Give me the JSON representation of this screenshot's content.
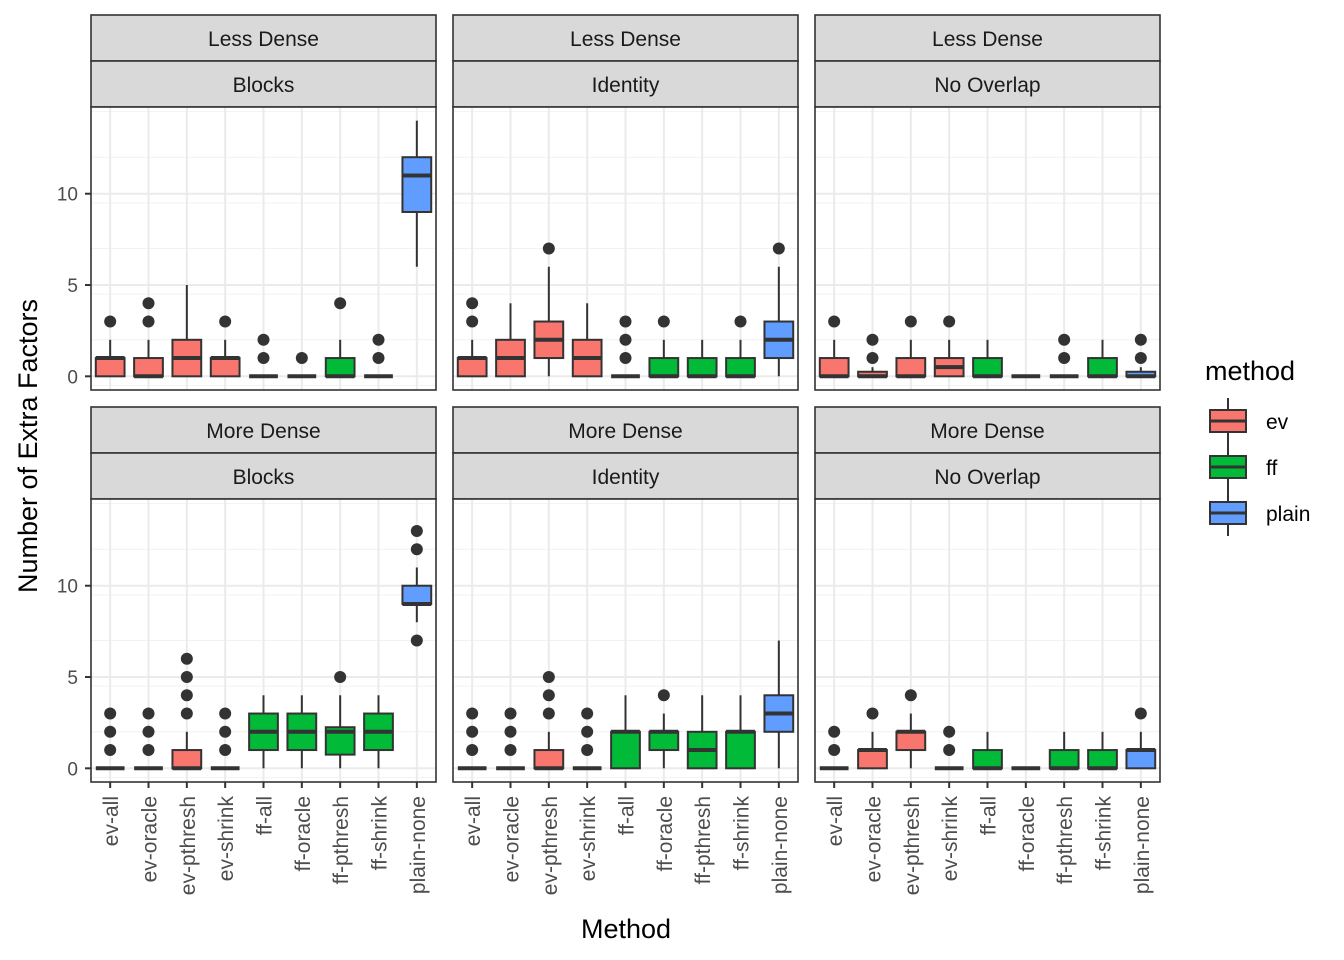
{
  "chart_data": {
    "type": "boxplot",
    "xlabel": "Method",
    "ylabel": "Number of Extra Factors",
    "yticks": [
      0,
      5,
      10
    ],
    "ylim": [
      -0.75,
      14.75
    ],
    "grid": true,
    "categories": [
      "ev-all",
      "ev-oracle",
      "ev-pthresh",
      "ev-shrink",
      "ff-all",
      "ff-oracle",
      "ff-pthresh",
      "ff-shrink",
      "plain-none"
    ],
    "category_group": [
      "ev",
      "ev",
      "ev",
      "ev",
      "ff",
      "ff",
      "ff",
      "ff",
      "plain"
    ],
    "legend": {
      "title": "method",
      "position": "right",
      "entries": [
        {
          "name": "ev",
          "color": "#F8766D"
        },
        {
          "name": "ff",
          "color": "#00BA38"
        },
        {
          "name": "plain",
          "color": "#619CFF"
        }
      ]
    },
    "panels": [
      {
        "strip_top": "Less Dense",
        "strip_bottom": "Blocks",
        "boxes": [
          {
            "q1": 0,
            "median": 1,
            "q3": 1,
            "wlo": 0,
            "whi": 2,
            "outliers": [
              3
            ]
          },
          {
            "q1": 0,
            "median": 0,
            "q3": 1,
            "wlo": 0,
            "whi": 2,
            "outliers": [
              3,
              4
            ]
          },
          {
            "q1": 0,
            "median": 1,
            "q3": 2,
            "wlo": 0,
            "whi": 5,
            "outliers": []
          },
          {
            "q1": 0,
            "median": 1,
            "q3": 1,
            "wlo": 0,
            "whi": 2,
            "outliers": [
              3
            ]
          },
          {
            "q1": 0,
            "median": 0,
            "q3": 0,
            "wlo": 0,
            "whi": 0,
            "outliers": [
              1,
              2
            ]
          },
          {
            "q1": 0,
            "median": 0,
            "q3": 0,
            "wlo": 0,
            "whi": 0,
            "outliers": [
              1
            ]
          },
          {
            "q1": 0,
            "median": 0,
            "q3": 1,
            "wlo": 0,
            "whi": 2,
            "outliers": [
              4
            ]
          },
          {
            "q1": 0,
            "median": 0,
            "q3": 0,
            "wlo": 0,
            "whi": 0,
            "outliers": [
              1,
              2
            ]
          },
          {
            "q1": 9,
            "median": 11,
            "q3": 12,
            "wlo": 6,
            "whi": 14,
            "outliers": []
          }
        ]
      },
      {
        "strip_top": "Less Dense",
        "strip_bottom": "Identity",
        "boxes": [
          {
            "q1": 0,
            "median": 1,
            "q3": 1,
            "wlo": 0,
            "whi": 2,
            "outliers": [
              3,
              4
            ]
          },
          {
            "q1": 0,
            "median": 1,
            "q3": 2,
            "wlo": 0,
            "whi": 4,
            "outliers": []
          },
          {
            "q1": 1,
            "median": 2,
            "q3": 3,
            "wlo": 0,
            "whi": 6,
            "outliers": [
              7
            ]
          },
          {
            "q1": 0,
            "median": 1,
            "q3": 2,
            "wlo": 0,
            "whi": 4,
            "outliers": []
          },
          {
            "q1": 0,
            "median": 0,
            "q3": 0,
            "wlo": 0,
            "whi": 0,
            "outliers": [
              1,
              2,
              3
            ]
          },
          {
            "q1": 0,
            "median": 0,
            "q3": 1,
            "wlo": 0,
            "whi": 2,
            "outliers": [
              3
            ]
          },
          {
            "q1": 0,
            "median": 0,
            "q3": 1,
            "wlo": 0,
            "whi": 2,
            "outliers": []
          },
          {
            "q1": 0,
            "median": 0,
            "q3": 1,
            "wlo": 0,
            "whi": 2,
            "outliers": [
              3
            ]
          },
          {
            "q1": 1,
            "median": 2,
            "q3": 3,
            "wlo": 0,
            "whi": 6,
            "outliers": [
              7
            ]
          }
        ]
      },
      {
        "strip_top": "Less Dense",
        "strip_bottom": "No Overlap",
        "boxes": [
          {
            "q1": 0,
            "median": 0,
            "q3": 1,
            "wlo": 0,
            "whi": 2,
            "outliers": [
              3
            ]
          },
          {
            "q1": 0,
            "median": 0,
            "q3": 0.25,
            "wlo": 0,
            "whi": 0.5,
            "outliers": [
              1,
              2
            ]
          },
          {
            "q1": 0,
            "median": 0,
            "q3": 1,
            "wlo": 0,
            "whi": 2,
            "outliers": [
              3
            ]
          },
          {
            "q1": 0,
            "median": 0.5,
            "q3": 1,
            "wlo": 0,
            "whi": 2,
            "outliers": [
              3
            ]
          },
          {
            "q1": 0,
            "median": 0,
            "q3": 1,
            "wlo": 0,
            "whi": 2,
            "outliers": []
          },
          {
            "q1": 0,
            "median": 0,
            "q3": 0,
            "wlo": 0,
            "whi": 0,
            "outliers": []
          },
          {
            "q1": 0,
            "median": 0,
            "q3": 0,
            "wlo": 0,
            "whi": 0,
            "outliers": [
              1,
              2
            ]
          },
          {
            "q1": 0,
            "median": 0,
            "q3": 1,
            "wlo": 0,
            "whi": 2,
            "outliers": []
          },
          {
            "q1": 0,
            "median": 0,
            "q3": 0.25,
            "wlo": 0,
            "whi": 0.5,
            "outliers": [
              1,
              2
            ]
          }
        ]
      },
      {
        "strip_top": "More Dense",
        "strip_bottom": "Blocks",
        "boxes": [
          {
            "q1": 0,
            "median": 0,
            "q3": 0,
            "wlo": 0,
            "whi": 0,
            "outliers": [
              1,
              2,
              3
            ]
          },
          {
            "q1": 0,
            "median": 0,
            "q3": 0,
            "wlo": 0,
            "whi": 0,
            "outliers": [
              1,
              2,
              3
            ]
          },
          {
            "q1": 0,
            "median": 0,
            "q3": 1,
            "wlo": 0,
            "whi": 2,
            "outliers": [
              3,
              4,
              5,
              6
            ]
          },
          {
            "q1": 0,
            "median": 0,
            "q3": 0,
            "wlo": 0,
            "whi": 0,
            "outliers": [
              1,
              2,
              3
            ]
          },
          {
            "q1": 1,
            "median": 2,
            "q3": 3,
            "wlo": 0,
            "whi": 4,
            "outliers": []
          },
          {
            "q1": 1,
            "median": 2,
            "q3": 3,
            "wlo": 0,
            "whi": 4,
            "outliers": []
          },
          {
            "q1": 0.75,
            "median": 2,
            "q3": 2.25,
            "wlo": 0,
            "whi": 4,
            "outliers": [
              5
            ]
          },
          {
            "q1": 1,
            "median": 2,
            "q3": 3,
            "wlo": 0,
            "whi": 4,
            "outliers": []
          },
          {
            "q1": 9,
            "median": 9,
            "q3": 10,
            "wlo": 8,
            "whi": 11,
            "outliers": [
              7,
              12,
              13
            ]
          }
        ]
      },
      {
        "strip_top": "More Dense",
        "strip_bottom": "Identity",
        "boxes": [
          {
            "q1": 0,
            "median": 0,
            "q3": 0,
            "wlo": 0,
            "whi": 0,
            "outliers": [
              1,
              2,
              3
            ]
          },
          {
            "q1": 0,
            "median": 0,
            "q3": 0,
            "wlo": 0,
            "whi": 0,
            "outliers": [
              1,
              2,
              3
            ]
          },
          {
            "q1": 0,
            "median": 0,
            "q3": 1,
            "wlo": 0,
            "whi": 2,
            "outliers": [
              3,
              4,
              5
            ]
          },
          {
            "q1": 0,
            "median": 0,
            "q3": 0,
            "wlo": 0,
            "whi": 0,
            "outliers": [
              1,
              2,
              3
            ]
          },
          {
            "q1": 0,
            "median": 2,
            "q3": 2,
            "wlo": 0,
            "whi": 4,
            "outliers": []
          },
          {
            "q1": 1,
            "median": 2,
            "q3": 2,
            "wlo": 0,
            "whi": 3,
            "outliers": [
              4
            ]
          },
          {
            "q1": 0,
            "median": 1,
            "q3": 2,
            "wlo": 0,
            "whi": 4,
            "outliers": []
          },
          {
            "q1": 0,
            "median": 2,
            "q3": 2,
            "wlo": 0,
            "whi": 4,
            "outliers": []
          },
          {
            "q1": 2,
            "median": 3,
            "q3": 4,
            "wlo": 0,
            "whi": 7,
            "outliers": []
          }
        ]
      },
      {
        "strip_top": "More Dense",
        "strip_bottom": "No Overlap",
        "boxes": [
          {
            "q1": 0,
            "median": 0,
            "q3": 0,
            "wlo": 0,
            "whi": 0,
            "outliers": [
              1,
              2
            ]
          },
          {
            "q1": 0,
            "median": 1,
            "q3": 1,
            "wlo": 0,
            "whi": 2,
            "outliers": [
              3
            ]
          },
          {
            "q1": 1,
            "median": 2,
            "q3": 2,
            "wlo": 0,
            "whi": 3,
            "outliers": [
              4
            ]
          },
          {
            "q1": 0,
            "median": 0,
            "q3": 0,
            "wlo": 0,
            "whi": 0,
            "outliers": [
              1,
              2
            ]
          },
          {
            "q1": 0,
            "median": 0,
            "q3": 1,
            "wlo": 0,
            "whi": 2,
            "outliers": []
          },
          {
            "q1": 0,
            "median": 0,
            "q3": 0,
            "wlo": 0,
            "whi": 0,
            "outliers": []
          },
          {
            "q1": 0,
            "median": 0,
            "q3": 1,
            "wlo": 0,
            "whi": 2,
            "outliers": []
          },
          {
            "q1": 0,
            "median": 0,
            "q3": 1,
            "wlo": 0,
            "whi": 2,
            "outliers": []
          },
          {
            "q1": 0,
            "median": 1,
            "q3": 1,
            "wlo": 0,
            "whi": 2,
            "outliers": [
              3
            ]
          }
        ]
      }
    ]
  }
}
